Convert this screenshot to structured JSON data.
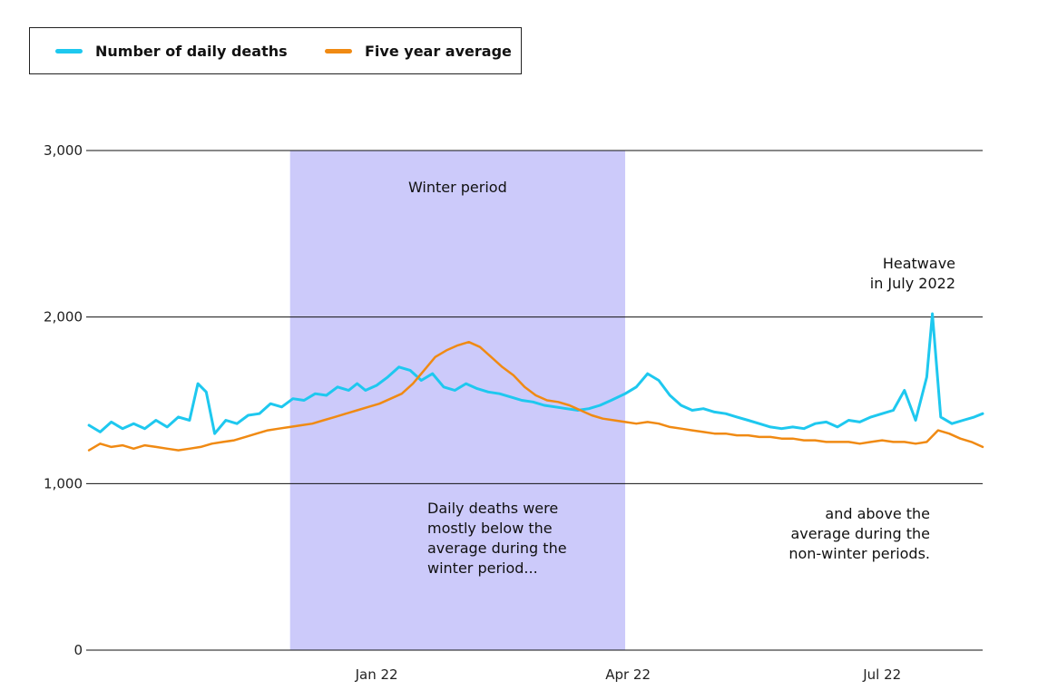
{
  "legend": {
    "series_a": "Number of daily deaths",
    "series_b": "Five year average"
  },
  "colors": {
    "daily": "#1ec8ef",
    "average": "#f08a13",
    "winter_band": "#cccafa",
    "grid": "#111111"
  },
  "chart_data": {
    "type": "line",
    "ylim": [
      0,
      3000
    ],
    "yticks": [
      {
        "value": 0,
        "label": "0"
      },
      {
        "value": 1000,
        "label": "1,000"
      },
      {
        "value": 2000,
        "label": "2,000"
      },
      {
        "value": 3000,
        "label": "3,000"
      }
    ],
    "x_start": "2021-09-19",
    "x_end": "2022-08-06",
    "xticks": [
      {
        "date": "2022-01-01",
        "label": "Jan 22"
      },
      {
        "date": "2022-04-01",
        "label": "Apr 22"
      },
      {
        "date": "2022-07-01",
        "label": "Jul 22"
      }
    ],
    "shaded_period": {
      "start": "2021-12-01",
      "end": "2022-03-31",
      "label": "Winter period"
    },
    "series": [
      {
        "name": "Number of daily deaths",
        "color": "#1ec8ef",
        "points": [
          [
            "2021-09-20",
            1350
          ],
          [
            "2021-09-24",
            1310
          ],
          [
            "2021-09-28",
            1370
          ],
          [
            "2021-10-02",
            1330
          ],
          [
            "2021-10-06",
            1360
          ],
          [
            "2021-10-10",
            1330
          ],
          [
            "2021-10-14",
            1380
          ],
          [
            "2021-10-18",
            1340
          ],
          [
            "2021-10-22",
            1400
          ],
          [
            "2021-10-26",
            1380
          ],
          [
            "2021-10-29",
            1600
          ],
          [
            "2021-11-01",
            1550
          ],
          [
            "2021-11-04",
            1300
          ],
          [
            "2021-11-08",
            1380
          ],
          [
            "2021-11-12",
            1360
          ],
          [
            "2021-11-16",
            1410
          ],
          [
            "2021-11-20",
            1420
          ],
          [
            "2021-11-24",
            1480
          ],
          [
            "2021-11-28",
            1460
          ],
          [
            "2021-12-02",
            1510
          ],
          [
            "2021-12-06",
            1500
          ],
          [
            "2021-12-10",
            1540
          ],
          [
            "2021-12-14",
            1530
          ],
          [
            "2021-12-18",
            1580
          ],
          [
            "2021-12-22",
            1560
          ],
          [
            "2021-12-25",
            1600
          ],
          [
            "2021-12-28",
            1560
          ],
          [
            "2022-01-01",
            1590
          ],
          [
            "2022-01-05",
            1640
          ],
          [
            "2022-01-09",
            1700
          ],
          [
            "2022-01-13",
            1680
          ],
          [
            "2022-01-17",
            1620
          ],
          [
            "2022-01-21",
            1660
          ],
          [
            "2022-01-25",
            1580
          ],
          [
            "2022-01-29",
            1560
          ],
          [
            "2022-02-02",
            1600
          ],
          [
            "2022-02-06",
            1570
          ],
          [
            "2022-02-10",
            1550
          ],
          [
            "2022-02-14",
            1540
          ],
          [
            "2022-02-18",
            1520
          ],
          [
            "2022-02-22",
            1500
          ],
          [
            "2022-02-26",
            1490
          ],
          [
            "2022-03-02",
            1470
          ],
          [
            "2022-03-06",
            1460
          ],
          [
            "2022-03-10",
            1450
          ],
          [
            "2022-03-14",
            1440
          ],
          [
            "2022-03-18",
            1450
          ],
          [
            "2022-03-22",
            1470
          ],
          [
            "2022-03-26",
            1500
          ],
          [
            "2022-03-31",
            1540
          ],
          [
            "2022-04-04",
            1580
          ],
          [
            "2022-04-08",
            1660
          ],
          [
            "2022-04-12",
            1620
          ],
          [
            "2022-04-16",
            1530
          ],
          [
            "2022-04-20",
            1470
          ],
          [
            "2022-04-24",
            1440
          ],
          [
            "2022-04-28",
            1450
          ],
          [
            "2022-05-02",
            1430
          ],
          [
            "2022-05-06",
            1420
          ],
          [
            "2022-05-10",
            1400
          ],
          [
            "2022-05-14",
            1380
          ],
          [
            "2022-05-18",
            1360
          ],
          [
            "2022-05-22",
            1340
          ],
          [
            "2022-05-26",
            1330
          ],
          [
            "2022-05-30",
            1340
          ],
          [
            "2022-06-03",
            1330
          ],
          [
            "2022-06-07",
            1360
          ],
          [
            "2022-06-11",
            1370
          ],
          [
            "2022-06-15",
            1340
          ],
          [
            "2022-06-19",
            1380
          ],
          [
            "2022-06-23",
            1370
          ],
          [
            "2022-06-27",
            1400
          ],
          [
            "2022-07-01",
            1420
          ],
          [
            "2022-07-05",
            1440
          ],
          [
            "2022-07-09",
            1560
          ],
          [
            "2022-07-13",
            1380
          ],
          [
            "2022-07-17",
            1640
          ],
          [
            "2022-07-19",
            2020
          ],
          [
            "2022-07-22",
            1400
          ],
          [
            "2022-07-26",
            1360
          ],
          [
            "2022-07-30",
            1380
          ],
          [
            "2022-08-03",
            1400
          ],
          [
            "2022-08-06",
            1420
          ]
        ]
      },
      {
        "name": "Five year average",
        "color": "#f08a13",
        "points": [
          [
            "2021-09-20",
            1200
          ],
          [
            "2021-09-24",
            1240
          ],
          [
            "2021-09-28",
            1220
          ],
          [
            "2021-10-02",
            1230
          ],
          [
            "2021-10-06",
            1210
          ],
          [
            "2021-10-10",
            1230
          ],
          [
            "2021-10-14",
            1220
          ],
          [
            "2021-10-18",
            1210
          ],
          [
            "2021-10-22",
            1200
          ],
          [
            "2021-10-26",
            1210
          ],
          [
            "2021-10-30",
            1220
          ],
          [
            "2021-11-03",
            1240
          ],
          [
            "2021-11-07",
            1250
          ],
          [
            "2021-11-11",
            1260
          ],
          [
            "2021-11-15",
            1280
          ],
          [
            "2021-11-19",
            1300
          ],
          [
            "2021-11-23",
            1320
          ],
          [
            "2021-11-27",
            1330
          ],
          [
            "2021-12-01",
            1340
          ],
          [
            "2021-12-05",
            1350
          ],
          [
            "2021-12-09",
            1360
          ],
          [
            "2021-12-13",
            1380
          ],
          [
            "2021-12-17",
            1400
          ],
          [
            "2021-12-21",
            1420
          ],
          [
            "2021-12-25",
            1440
          ],
          [
            "2021-12-29",
            1460
          ],
          [
            "2022-01-02",
            1480
          ],
          [
            "2022-01-06",
            1510
          ],
          [
            "2022-01-10",
            1540
          ],
          [
            "2022-01-14",
            1600
          ],
          [
            "2022-01-18",
            1680
          ],
          [
            "2022-01-22",
            1760
          ],
          [
            "2022-01-26",
            1800
          ],
          [
            "2022-01-30",
            1830
          ],
          [
            "2022-02-03",
            1850
          ],
          [
            "2022-02-07",
            1820
          ],
          [
            "2022-02-11",
            1760
          ],
          [
            "2022-02-15",
            1700
          ],
          [
            "2022-02-19",
            1650
          ],
          [
            "2022-02-23",
            1580
          ],
          [
            "2022-02-27",
            1530
          ],
          [
            "2022-03-03",
            1500
          ],
          [
            "2022-03-07",
            1490
          ],
          [
            "2022-03-11",
            1470
          ],
          [
            "2022-03-15",
            1440
          ],
          [
            "2022-03-19",
            1410
          ],
          [
            "2022-03-23",
            1390
          ],
          [
            "2022-03-27",
            1380
          ],
          [
            "2022-03-31",
            1370
          ],
          [
            "2022-04-04",
            1360
          ],
          [
            "2022-04-08",
            1370
          ],
          [
            "2022-04-12",
            1360
          ],
          [
            "2022-04-16",
            1340
          ],
          [
            "2022-04-20",
            1330
          ],
          [
            "2022-04-24",
            1320
          ],
          [
            "2022-04-28",
            1310
          ],
          [
            "2022-05-02",
            1300
          ],
          [
            "2022-05-06",
            1300
          ],
          [
            "2022-05-10",
            1290
          ],
          [
            "2022-05-14",
            1290
          ],
          [
            "2022-05-18",
            1280
          ],
          [
            "2022-05-22",
            1280
          ],
          [
            "2022-05-26",
            1270
          ],
          [
            "2022-05-30",
            1270
          ],
          [
            "2022-06-03",
            1260
          ],
          [
            "2022-06-07",
            1260
          ],
          [
            "2022-06-11",
            1250
          ],
          [
            "2022-06-15",
            1250
          ],
          [
            "2022-06-19",
            1250
          ],
          [
            "2022-06-23",
            1240
          ],
          [
            "2022-06-27",
            1250
          ],
          [
            "2022-07-01",
            1260
          ],
          [
            "2022-07-05",
            1250
          ],
          [
            "2022-07-09",
            1250
          ],
          [
            "2022-07-13",
            1240
          ],
          [
            "2022-07-17",
            1250
          ],
          [
            "2022-07-21",
            1320
          ],
          [
            "2022-07-25",
            1300
          ],
          [
            "2022-07-29",
            1270
          ],
          [
            "2022-08-02",
            1250
          ],
          [
            "2022-08-06",
            1220
          ]
        ]
      }
    ],
    "annotations": {
      "winter_label": "Winter period",
      "heatwave_line1": "Heatwave",
      "heatwave_line2": "in July 2022",
      "below_lines": [
        "Daily deaths were",
        "mostly below the",
        "average during the",
        "winter period..."
      ],
      "above_lines": [
        "and above the",
        "average during the",
        "non-winter periods."
      ]
    }
  }
}
